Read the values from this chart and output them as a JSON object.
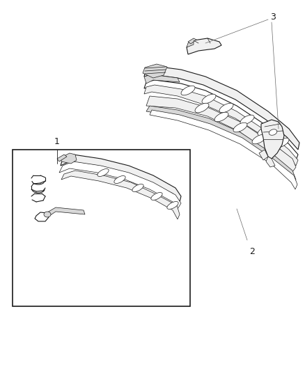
{
  "background_color": "#ffffff",
  "figure_size": [
    4.38,
    5.33
  ],
  "dpi": 100,
  "label1": "1",
  "label2": "2",
  "label3": "3",
  "line_color": "#1a1a1a",
  "fill_light": "#f0f0f0",
  "fill_mid": "#d8d8d8",
  "fill_dark": "#b0b0b0",
  "fill_darker": "#888888"
}
